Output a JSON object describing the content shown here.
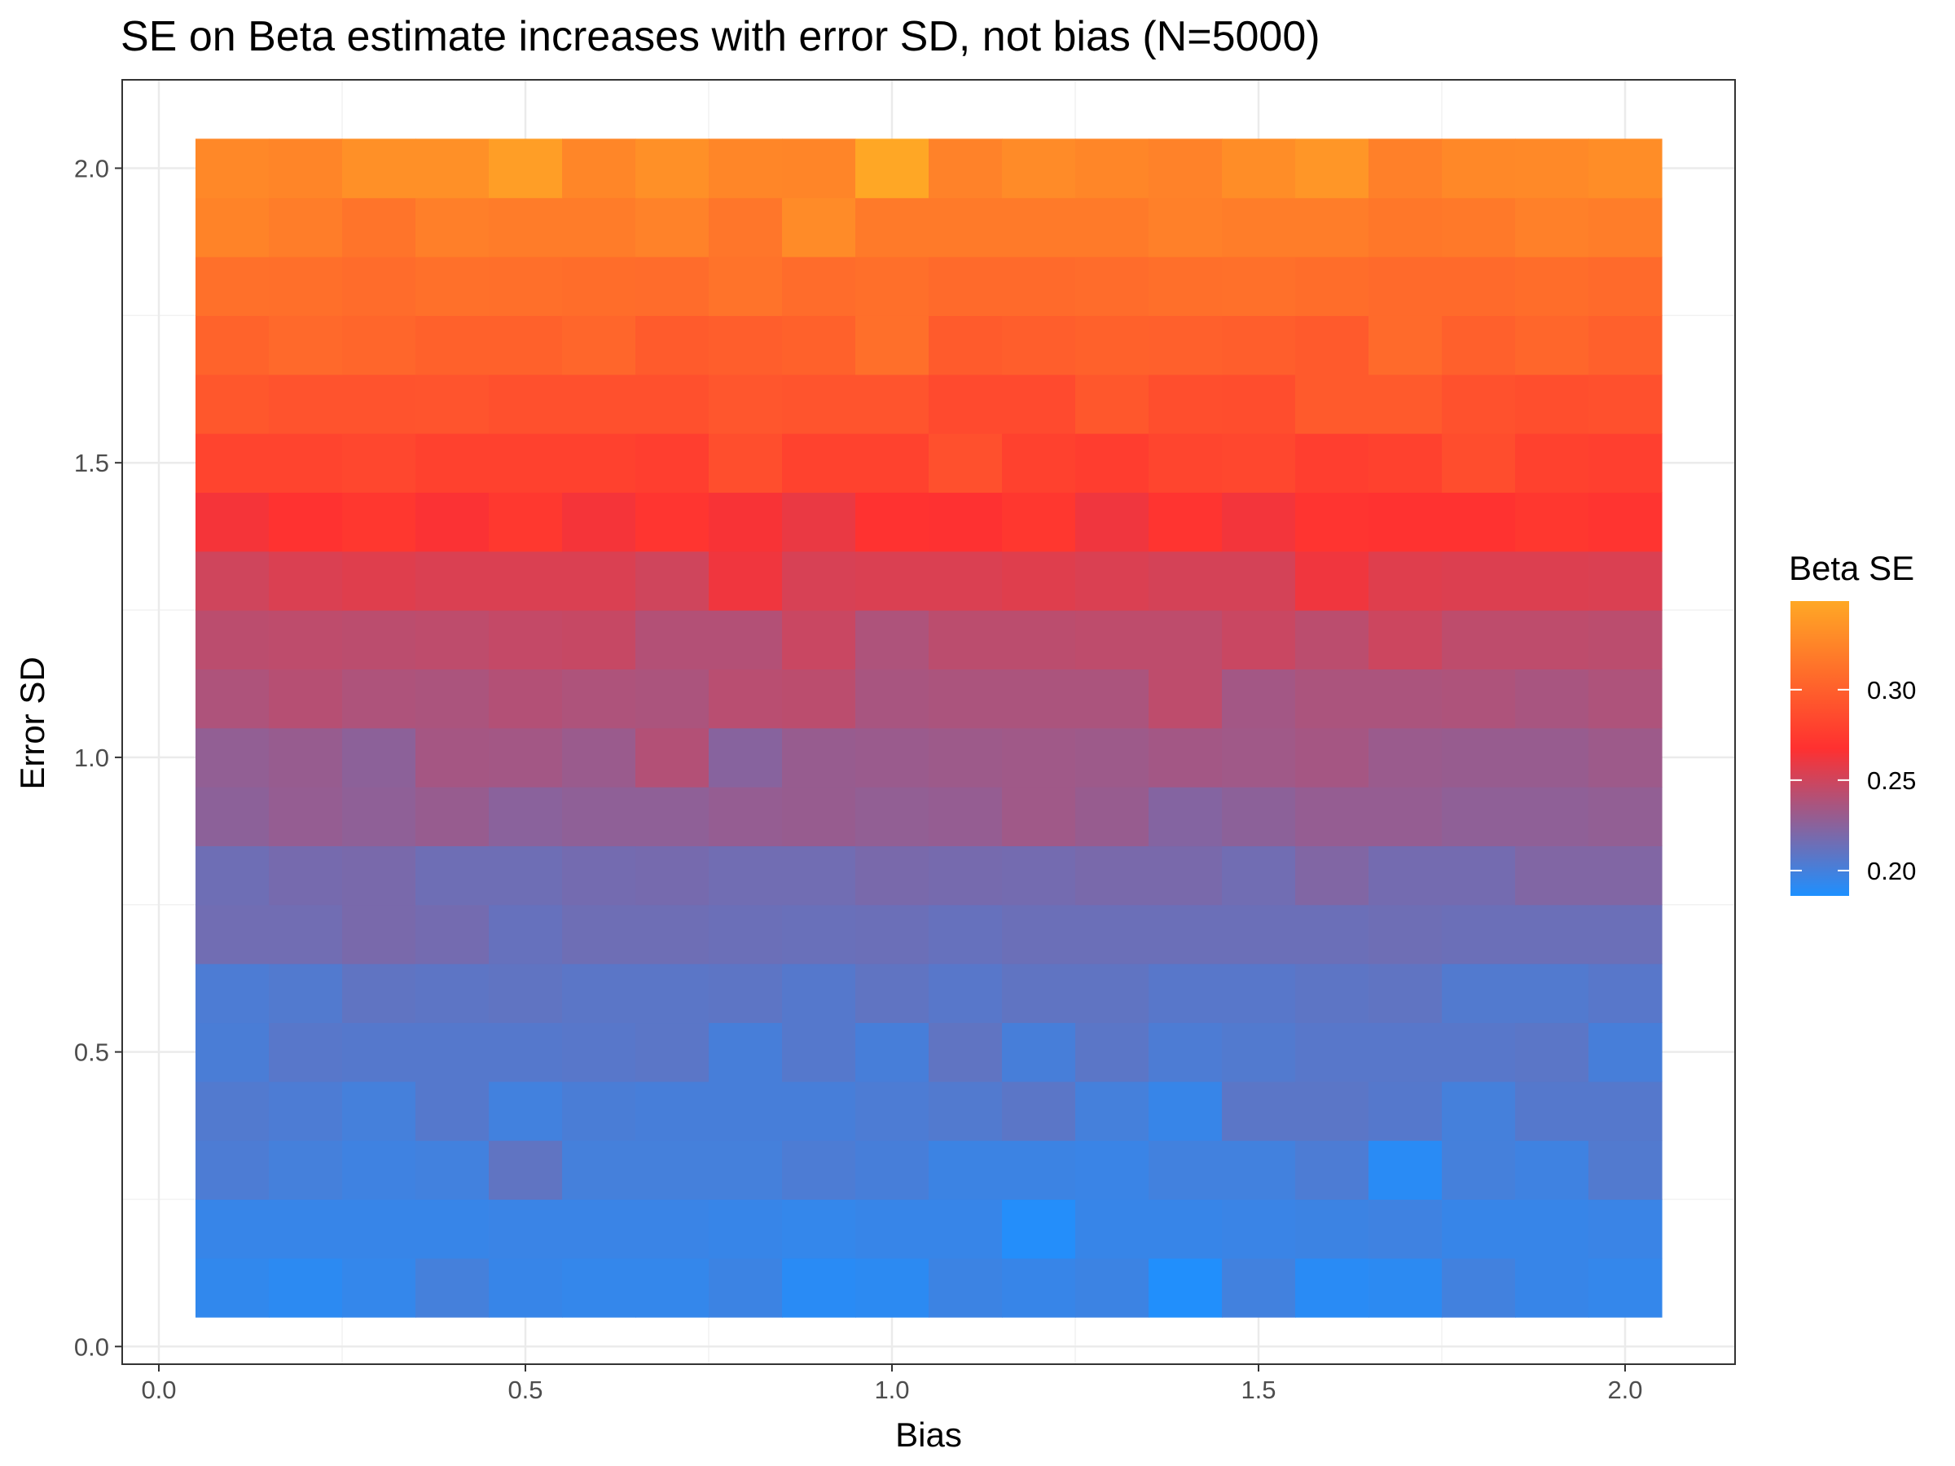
{
  "chart_data": {
    "type": "heatmap",
    "title": "SE on Beta estimate increases with error SD, not bias (N=5000)",
    "xlabel": "Bias",
    "ylabel": "Error SD",
    "x": [
      0.1,
      0.2,
      0.3,
      0.4,
      0.5,
      0.6,
      0.7,
      0.8,
      0.9,
      1.0,
      1.1,
      1.2,
      1.3,
      1.4,
      1.5,
      1.6,
      1.7,
      1.8,
      1.9,
      2.0
    ],
    "y": [
      0.1,
      0.2,
      0.3,
      0.4,
      0.5,
      0.6,
      0.7,
      0.8,
      0.9,
      1.0,
      1.1,
      1.2,
      1.3,
      1.4,
      1.5,
      1.6,
      1.7,
      1.8,
      1.9,
      2.0
    ],
    "xlim": [
      -0.05,
      2.15
    ],
    "ylim": [
      -0.03,
      2.15
    ],
    "x_ticks": [
      "0.0",
      "0.5",
      "1.0",
      "1.5",
      "2.0"
    ],
    "y_ticks": [
      "0.0",
      "0.5",
      "1.0",
      "1.5",
      "2.0"
    ],
    "x_tick_values": [
      0,
      0.5,
      1.0,
      1.5,
      2.0
    ],
    "y_tick_values": [
      0,
      0.5,
      1.0,
      1.5,
      2.0
    ],
    "grid": true,
    "legend": {
      "title": "Beta SE",
      "position": "right",
      "range": [
        0.186,
        0.349
      ],
      "breaks": [
        "0.20",
        "0.25",
        "0.30"
      ],
      "break_values": [
        0.2,
        0.25,
        0.3
      ],
      "colors": [
        "#1e90ff",
        "#ff3030",
        "#ffa825"
      ]
    },
    "values": [
      [
        0.193,
        0.191,
        0.194,
        0.2,
        0.195,
        0.194,
        0.194,
        0.197,
        0.19,
        0.191,
        0.197,
        0.195,
        0.197,
        0.187,
        0.199,
        0.19,
        0.191,
        0.199,
        0.195,
        0.194
      ],
      [
        0.195,
        0.195,
        0.195,
        0.195,
        0.196,
        0.196,
        0.196,
        0.195,
        0.194,
        0.195,
        0.195,
        0.188,
        0.195,
        0.195,
        0.196,
        0.197,
        0.198,
        0.195,
        0.195,
        0.196
      ],
      [
        0.203,
        0.2,
        0.198,
        0.199,
        0.21,
        0.2,
        0.2,
        0.2,
        0.203,
        0.201,
        0.197,
        0.197,
        0.196,
        0.199,
        0.199,
        0.203,
        0.19,
        0.2,
        0.198,
        0.205
      ],
      [
        0.205,
        0.203,
        0.2,
        0.206,
        0.199,
        0.202,
        0.201,
        0.201,
        0.201,
        0.203,
        0.205,
        0.208,
        0.2,
        0.195,
        0.208,
        0.208,
        0.206,
        0.2,
        0.206,
        0.206
      ],
      [
        0.202,
        0.207,
        0.206,
        0.206,
        0.206,
        0.207,
        0.208,
        0.201,
        0.206,
        0.201,
        0.21,
        0.201,
        0.208,
        0.203,
        0.205,
        0.207,
        0.207,
        0.207,
        0.208,
        0.201
      ],
      [
        0.203,
        0.205,
        0.21,
        0.209,
        0.21,
        0.208,
        0.208,
        0.209,
        0.206,
        0.21,
        0.207,
        0.21,
        0.21,
        0.207,
        0.207,
        0.209,
        0.21,
        0.205,
        0.205,
        0.207
      ],
      [
        0.216,
        0.216,
        0.219,
        0.217,
        0.212,
        0.215,
        0.215,
        0.214,
        0.213,
        0.214,
        0.212,
        0.214,
        0.214,
        0.214,
        0.214,
        0.214,
        0.215,
        0.214,
        0.214,
        0.214
      ],
      [
        0.215,
        0.218,
        0.219,
        0.215,
        0.215,
        0.217,
        0.218,
        0.216,
        0.216,
        0.219,
        0.218,
        0.217,
        0.219,
        0.219,
        0.216,
        0.222,
        0.217,
        0.217,
        0.222,
        0.222
      ],
      [
        0.226,
        0.229,
        0.227,
        0.23,
        0.225,
        0.227,
        0.227,
        0.229,
        0.23,
        0.228,
        0.229,
        0.233,
        0.23,
        0.223,
        0.226,
        0.229,
        0.229,
        0.227,
        0.227,
        0.228
      ],
      [
        0.228,
        0.23,
        0.226,
        0.235,
        0.234,
        0.231,
        0.24,
        0.224,
        0.23,
        0.231,
        0.232,
        0.233,
        0.232,
        0.234,
        0.233,
        0.235,
        0.231,
        0.23,
        0.23,
        0.232
      ],
      [
        0.238,
        0.241,
        0.238,
        0.237,
        0.24,
        0.238,
        0.237,
        0.242,
        0.243,
        0.236,
        0.237,
        0.237,
        0.237,
        0.244,
        0.234,
        0.237,
        0.237,
        0.238,
        0.236,
        0.238
      ],
      [
        0.243,
        0.244,
        0.243,
        0.244,
        0.246,
        0.247,
        0.24,
        0.24,
        0.248,
        0.238,
        0.243,
        0.243,
        0.244,
        0.244,
        0.248,
        0.243,
        0.249,
        0.244,
        0.244,
        0.243
      ],
      [
        0.25,
        0.254,
        0.256,
        0.254,
        0.254,
        0.254,
        0.25,
        0.262,
        0.253,
        0.254,
        0.254,
        0.256,
        0.254,
        0.252,
        0.252,
        0.262,
        0.256,
        0.255,
        0.255,
        0.254
      ],
      [
        0.264,
        0.269,
        0.272,
        0.266,
        0.273,
        0.264,
        0.271,
        0.265,
        0.26,
        0.269,
        0.267,
        0.272,
        0.262,
        0.27,
        0.263,
        0.27,
        0.269,
        0.269,
        0.272,
        0.27
      ],
      [
        0.281,
        0.281,
        0.283,
        0.279,
        0.279,
        0.279,
        0.277,
        0.288,
        0.28,
        0.28,
        0.289,
        0.279,
        0.276,
        0.282,
        0.283,
        0.277,
        0.279,
        0.287,
        0.279,
        0.278
      ],
      [
        0.294,
        0.291,
        0.291,
        0.292,
        0.289,
        0.289,
        0.289,
        0.293,
        0.292,
        0.292,
        0.285,
        0.285,
        0.294,
        0.288,
        0.287,
        0.296,
        0.296,
        0.29,
        0.288,
        0.289
      ],
      [
        0.302,
        0.306,
        0.304,
        0.301,
        0.301,
        0.304,
        0.297,
        0.299,
        0.301,
        0.31,
        0.297,
        0.299,
        0.301,
        0.3,
        0.299,
        0.296,
        0.307,
        0.3,
        0.304,
        0.3
      ],
      [
        0.311,
        0.31,
        0.308,
        0.311,
        0.31,
        0.309,
        0.308,
        0.313,
        0.308,
        0.31,
        0.307,
        0.307,
        0.308,
        0.31,
        0.311,
        0.309,
        0.307,
        0.307,
        0.309,
        0.307
      ],
      [
        0.324,
        0.32,
        0.314,
        0.321,
        0.319,
        0.319,
        0.323,
        0.315,
        0.329,
        0.318,
        0.318,
        0.318,
        0.318,
        0.322,
        0.32,
        0.32,
        0.316,
        0.317,
        0.322,
        0.32
      ],
      [
        0.327,
        0.325,
        0.333,
        0.333,
        0.342,
        0.326,
        0.333,
        0.326,
        0.325,
        0.348,
        0.323,
        0.329,
        0.326,
        0.323,
        0.331,
        0.337,
        0.322,
        0.327,
        0.328,
        0.331
      ]
    ]
  }
}
